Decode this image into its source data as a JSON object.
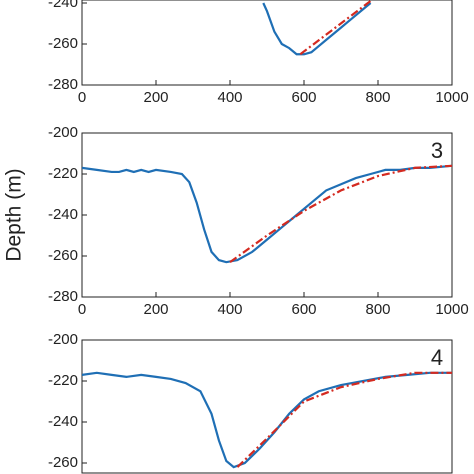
{
  "chart_data": [
    {
      "type": "line",
      "xlim": [
        0,
        1000
      ],
      "ylim": [
        -280,
        -200
      ],
      "xticks": [
        0,
        200,
        400,
        600,
        800,
        1000
      ],
      "yticks": [
        -280,
        -260,
        -240
      ],
      "series": [
        {
          "color": "#1f6fb5",
          "style": "solid",
          "x": [
            490,
            500,
            520,
            540,
            560,
            580,
            600,
            620,
            640,
            660,
            680,
            700,
            720,
            740,
            760,
            780
          ],
          "values": [
            -240,
            -244,
            -254,
            -260,
            -262,
            -265,
            -265,
            -264,
            -261,
            -258,
            -255,
            -252,
            -249,
            -246,
            -243,
            -240
          ]
        },
        {
          "color": "#d42a20",
          "style": "dashdot",
          "x": [
            590,
            780
          ],
          "values": [
            -265,
            -239
          ]
        }
      ]
    },
    {
      "type": "line",
      "label": "3",
      "ylabel": "Depth (m)",
      "xlim": [
        0,
        1000
      ],
      "ylim": [
        -280,
        -200
      ],
      "xticks": [
        0,
        200,
        400,
        600,
        800,
        1000
      ],
      "yticks": [
        -280,
        -260,
        -240,
        -220,
        -200
      ],
      "series": [
        {
          "color": "#1f6fb5",
          "style": "solid",
          "x": [
            0,
            40,
            80,
            100,
            120,
            140,
            160,
            180,
            200,
            240,
            270,
            290,
            310,
            330,
            350,
            370,
            390,
            420,
            460,
            500,
            540,
            580,
            620,
            660,
            700,
            740,
            780,
            820,
            860,
            900,
            940,
            1000
          ],
          "values": [
            -217,
            -218,
            -219,
            -219,
            -218,
            -219,
            -218,
            -219,
            -218,
            -219,
            -220,
            -224,
            -234,
            -247,
            -258,
            -262,
            -263,
            -262,
            -258,
            -252,
            -246,
            -240,
            -234,
            -228,
            -225,
            -222,
            -220,
            -218,
            -218,
            -217,
            -217,
            -216
          ]
        },
        {
          "color": "#d42a20",
          "style": "dashdot",
          "x": [
            400,
            500,
            600,
            700,
            800,
            900,
            1000
          ],
          "values": [
            -263,
            -250,
            -238,
            -228,
            -221,
            -217,
            -216
          ]
        }
      ]
    },
    {
      "type": "line",
      "label": "4",
      "xlim": [
        0,
        1000
      ],
      "ylim": [
        -280,
        -200
      ],
      "yticks": [
        -260,
        -240,
        -220,
        -200
      ],
      "series": [
        {
          "color": "#1f6fb5",
          "style": "solid",
          "x": [
            0,
            40,
            80,
            120,
            160,
            200,
            240,
            280,
            320,
            350,
            370,
            390,
            410,
            440,
            480,
            520,
            560,
            600,
            640,
            700,
            760,
            820,
            880,
            940,
            1000
          ],
          "values": [
            -217,
            -216,
            -217,
            -218,
            -217,
            -218,
            -219,
            -221,
            -225,
            -236,
            -249,
            -259,
            -262,
            -260,
            -253,
            -245,
            -236,
            -229,
            -225,
            -222,
            -220,
            -218,
            -217,
            -216,
            -216
          ]
        },
        {
          "color": "#d42a20",
          "style": "dashdot",
          "x": [
            420,
            500,
            600,
            700,
            800,
            900,
            1000
          ],
          "values": [
            -262,
            -248,
            -230,
            -223,
            -219,
            -216,
            -216
          ]
        }
      ]
    }
  ]
}
